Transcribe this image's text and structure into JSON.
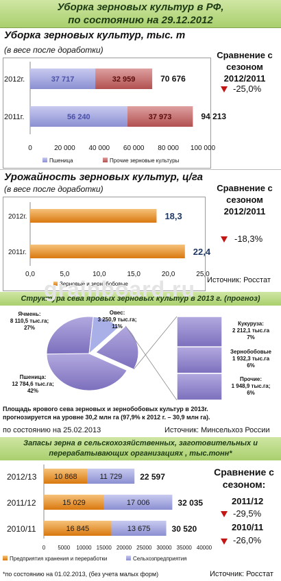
{
  "header": {
    "line1": "Уборка зерновых культур в РФ,",
    "line2": "по состоянию на 29.12.2012"
  },
  "section1": {
    "title": "Уборка зерновых культур, тыс. т",
    "subtitle": "(в весе после доработки)",
    "compare_title": "Сравнение с сезоном 2012/2011",
    "compare_value": "-25,0%"
  },
  "section2": {
    "title": "Урожайность  зерновых культур, ц/га",
    "subtitle": "(в весе после доработки)",
    "compare_title": "Сравнение с сезоном 2012/2011",
    "compare_value": "-18,3%",
    "source": "Источник: Росстат"
  },
  "section3": {
    "title": "Структура сева яровых зерновых культур в 2013 г. (прогноз)",
    "note_line1": "Площадь ярового сева зерновых и зернобобовых культур в 2013г.",
    "note_line2": "прогнозируется на уровне 30,2 млн га (97,9% к 2012 г. – 30,9 млн га).",
    "date_note": "по состоянию на 25.02.2013",
    "source": "Источник: Минсельхоз России",
    "watermark": "grainboard.ru"
  },
  "section4": {
    "title_line1": "Запасы зерна в  сельскохозяйственных, заготовительных и",
    "title_line2": "перерабатывающих организациях , тыс.тонн*",
    "compare_title": "Сравнение с сезоном:",
    "cmp1_label": "2011/12",
    "cmp1_value": "-29,5%",
    "cmp2_label": "2010/11",
    "cmp2_value": "-26,0%",
    "footnote": "*по состоянию на 01.02.2013, (без учета малых форм)",
    "source": "Источник: Росстат"
  },
  "colors": {
    "purple": "#8b8fd1",
    "red": "#b85b5b",
    "orange": "#e08a1c",
    "accent_red": "#c41515",
    "header_green": "#a9cf6d"
  },
  "chart_data": [
    {
      "type": "bar",
      "orientation": "horizontal",
      "stacked": true,
      "categories": [
        "2012г.",
        "2011г."
      ],
      "series": [
        {
          "name": "Пшеница",
          "values": [
            37717,
            56240
          ],
          "labels": [
            "37 717",
            "56 240"
          ]
        },
        {
          "name": "Прочие зерновые культуры",
          "values": [
            32959,
            37973
          ],
          "labels": [
            "32 959",
            "37 973"
          ]
        }
      ],
      "totals": [
        "70 676",
        "94 213"
      ],
      "xticks": [
        "0",
        "20 000",
        "40 000",
        "60 000",
        "80 000",
        "100 000"
      ],
      "xlim": [
        0,
        100000
      ],
      "legend": "bottom"
    },
    {
      "type": "bar",
      "orientation": "horizontal",
      "categories": [
        "2012г.",
        "2011г."
      ],
      "series": [
        {
          "name": "Зерновые и зернобобовые",
          "values": [
            18.3,
            22.4
          ],
          "labels": [
            "18,3",
            "22,4"
          ]
        }
      ],
      "xticks": [
        "0,0",
        "5,0",
        "10,0",
        "15,0",
        "20,0",
        "25,0"
      ],
      "xlim": [
        0,
        25
      ],
      "legend": "bottom"
    },
    {
      "type": "pie",
      "slices": [
        {
          "name": "Пшеница",
          "value": 12784.6,
          "label": "Пшеница:\n12 784,6 тыс.га;\n42%"
        },
        {
          "name": "Ячмень",
          "value": 8110.5,
          "label": "Ячмень:\n8 110,5 тыс.га;\n27%"
        },
        {
          "name": "Овес",
          "value": 3250.9,
          "label": "Овес:\n3 250,9 тыс.га;\n11%"
        },
        {
          "name": "Прочие",
          "value": 6093.2
        }
      ],
      "breakdown": [
        {
          "name": "Кукуруза",
          "value": 2212.1,
          "label": "Кукуруза:\n2 212,1 тыс.га\n7%"
        },
        {
          "name": "Зернобобовые",
          "value": 1932.3,
          "label": "Зернобобовые\n1 932,3 тыс.га\n6%"
        },
        {
          "name": "Прочие",
          "value": 1948.9,
          "label": "Прочие:\n1 948,9 тыс.га;\n6%"
        }
      ]
    },
    {
      "type": "bar",
      "orientation": "horizontal",
      "stacked": true,
      "categories": [
        "2012/13",
        "2011/12",
        "2010/11"
      ],
      "series": [
        {
          "name": "Предприятия хранения и переработки",
          "values": [
            10868,
            15029,
            16845
          ],
          "labels": [
            "10 868",
            "15 029",
            "16 845"
          ]
        },
        {
          "name": "Сельхозпредприятия",
          "values": [
            11729,
            17006,
            13675
          ],
          "labels": [
            "11 729",
            "17 006",
            "13 675"
          ]
        }
      ],
      "totals": [
        "22 597",
        "32 035",
        "30 520"
      ],
      "xticks": [
        "0",
        "5000",
        "10000",
        "15000",
        "20000",
        "25000",
        "30000",
        "35000",
        "40000"
      ],
      "xlim": [
        0,
        40000
      ],
      "legend": "bottom"
    }
  ]
}
